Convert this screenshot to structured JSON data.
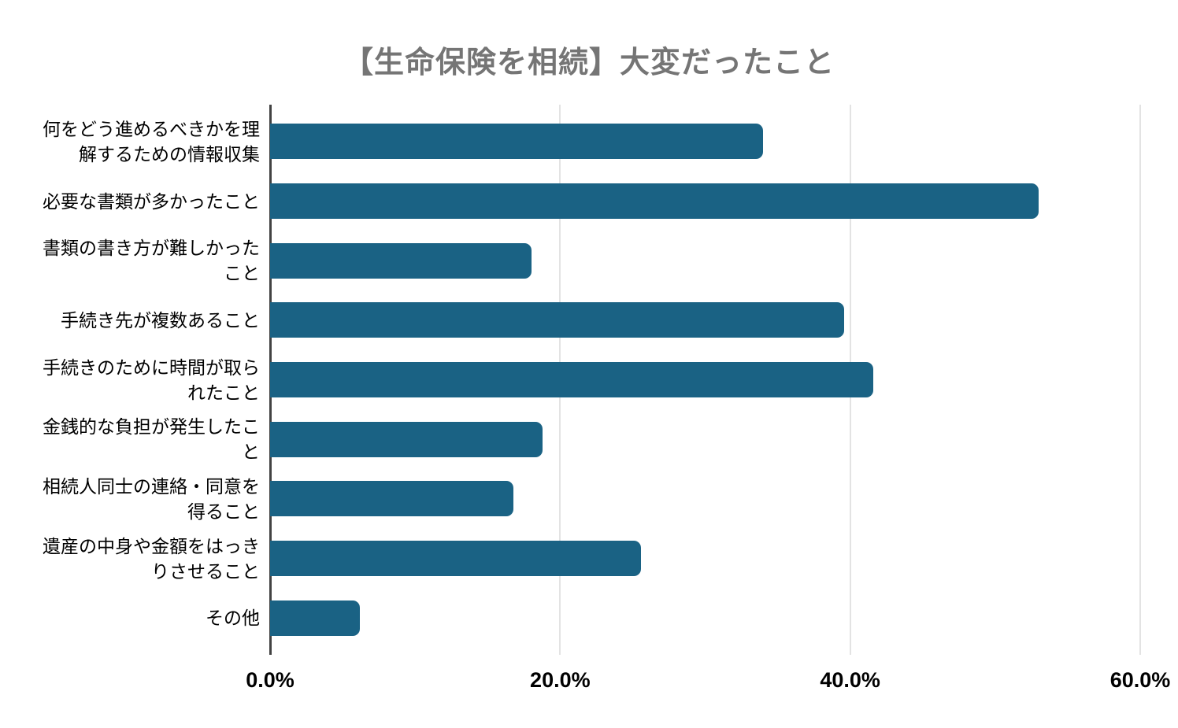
{
  "title": "【生命保険を相続】大変だったこと",
  "colors": {
    "title": "#757575",
    "bar": "#1a6284",
    "gridline": "#e3e3e3",
    "axis": "#424242",
    "label_text": "#000000",
    "tick_text": "#000000",
    "background": "#ffffff"
  },
  "chart_data": {
    "type": "bar",
    "orientation": "horizontal",
    "title": "【生命保険を相続】大変だったこと",
    "categories": [
      "何をどう進めるべきかを理解するための情報収集",
      "必要な書類が多かったこと",
      "書類の書き方が難しかったこと",
      "手続き先が複数あること",
      "手続きのために時間が取られたこと",
      "金銭的な負担が発生したこと",
      "相続人同士の連絡・同意を得ること",
      "遺産の中身や金額をはっきりさせること",
      "その他"
    ],
    "values": [
      34.0,
      53.0,
      18.0,
      39.6,
      41.6,
      18.8,
      16.8,
      25.6,
      6.2
    ],
    "unit": "%",
    "xlim": [
      0,
      60
    ],
    "x_tick_values": [
      0,
      20,
      40,
      60
    ],
    "x_tick_labels": [
      "0.0%",
      "20.0%",
      "40.0%",
      "60.0%"
    ],
    "grid": true,
    "legend": false,
    "bar_color": "#1a6284"
  }
}
